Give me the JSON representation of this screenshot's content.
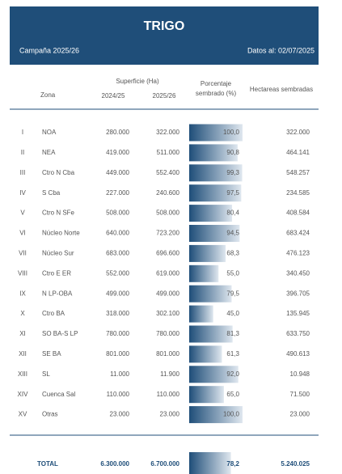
{
  "header": {
    "title": "TRIGO",
    "campaign": "Campaña 2025/26",
    "date": "Datos al: 02/07/2025"
  },
  "table": {
    "columns": {
      "zone": "Zona",
      "surface": "Superficie (Ha)",
      "s2024": "2024/25",
      "s2025": "2025/26",
      "pct": [
        "Porcentaje",
        "sembrado (%)"
      ],
      "ha": "Hectareas sembradas"
    },
    "rows": [
      {
        "roman": "I",
        "zone": "NOA",
        "s2024": "280.000",
        "s2025": "322.000",
        "pct": {
          "value": 100.0,
          "label": "100,0"
        },
        "ha": "322.000"
      },
      {
        "roman": "II",
        "zone": "NEA",
        "s2024": "419.000",
        "s2025": "511.000",
        "pct": {
          "value": 90.8,
          "label": "90,8"
        },
        "ha": "464.141"
      },
      {
        "roman": "III",
        "zone": "Ctro N Cba",
        "s2024": "449.000",
        "s2025": "552.400",
        "pct": {
          "value": 99.3,
          "label": "99,3"
        },
        "ha": "548.257"
      },
      {
        "roman": "IV",
        "zone": "S Cba",
        "s2024": "227.000",
        "s2025": "240.600",
        "pct": {
          "value": 97.5,
          "label": "97,5"
        },
        "ha": "234.585"
      },
      {
        "roman": "V",
        "zone": "Ctro N SFe",
        "s2024": "508.000",
        "s2025": "508.000",
        "pct": {
          "value": 80.4,
          "label": "80,4"
        },
        "ha": "408.584"
      },
      {
        "roman": "VI",
        "zone": "Núcleo Norte",
        "s2024": "640.000",
        "s2025": "723.200",
        "pct": {
          "value": 94.5,
          "label": "94,5"
        },
        "ha": "683.424"
      },
      {
        "roman": "VII",
        "zone": "Núcleo Sur",
        "s2024": "683.000",
        "s2025": "696.600",
        "pct": {
          "value": 68.3,
          "label": "68,3"
        },
        "ha": "476.123"
      },
      {
        "roman": "VIII",
        "zone": "Ctro E ER",
        "s2024": "552.000",
        "s2025": "619.000",
        "pct": {
          "value": 55.0,
          "label": "55,0"
        },
        "ha": "340.450"
      },
      {
        "roman": "IX",
        "zone": "N LP-OBA",
        "s2024": "499.000",
        "s2025": "499.000",
        "pct": {
          "value": 79.5,
          "label": "79,5"
        },
        "ha": "396.705"
      },
      {
        "roman": "X",
        "zone": "Ctro BA",
        "s2024": "318.000",
        "s2025": "302.100",
        "pct": {
          "value": 45.0,
          "label": "45,0"
        },
        "ha": "135.945"
      },
      {
        "roman": "XI",
        "zone": "SO BA-S LP",
        "s2024": "780.000",
        "s2025": "780.000",
        "pct": {
          "value": 81.3,
          "label": "81,3"
        },
        "ha": "633.750"
      },
      {
        "roman": "XII",
        "zone": "SE BA",
        "s2024": "801.000",
        "s2025": "801.000",
        "pct": {
          "value": 61.3,
          "label": "61,3"
        },
        "ha": "490.613"
      },
      {
        "roman": "XIII",
        "zone": "SL",
        "s2024": "11.000",
        "s2025": "11.900",
        "pct": {
          "value": 92.0,
          "label": "92,0"
        },
        "ha": "10.948"
      },
      {
        "roman": "XIV",
        "zone": "Cuenca Sal",
        "s2024": "110.000",
        "s2025": "110.000",
        "pct": {
          "value": 65.0,
          "label": "65,0"
        },
        "ha": "71.500"
      },
      {
        "roman": "XV",
        "zone": "Otras",
        "s2024": "23.000",
        "s2025": "23.000",
        "pct": {
          "value": 100.0,
          "label": "100,0"
        },
        "ha": "23.000"
      }
    ],
    "total": {
      "label": "TOTAL",
      "s2024": "6.300.000",
      "s2025": "6.700.000",
      "pct": {
        "value": 78.2,
        "label": "78,2"
      },
      "ha": "5.240.025"
    }
  }
}
